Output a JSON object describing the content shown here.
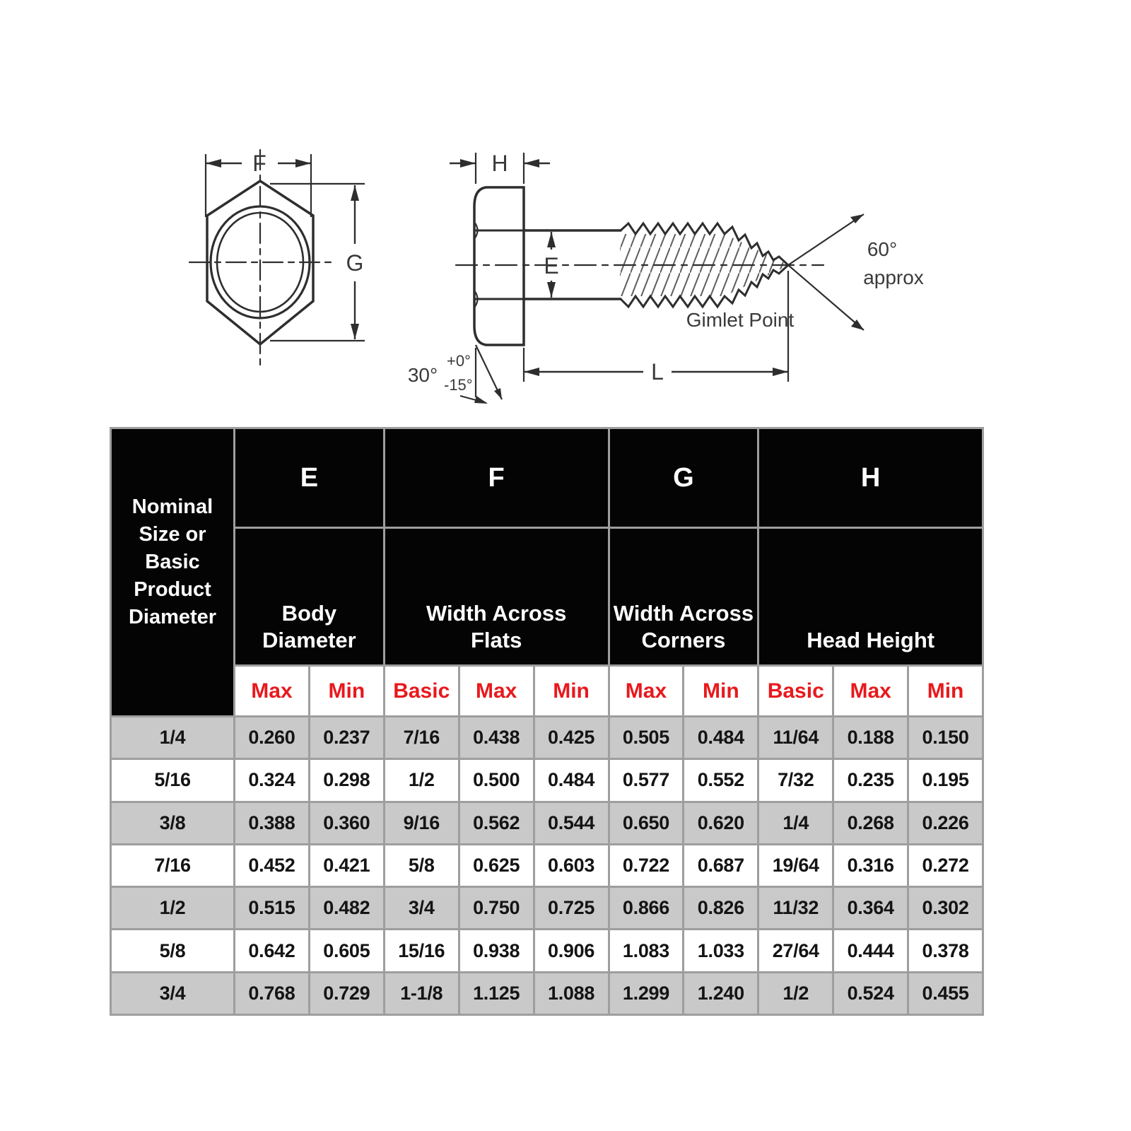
{
  "diagram": {
    "labels": {
      "f": "F",
      "g": "G",
      "h": "H",
      "e": "E",
      "l": "L",
      "angle30": "30°",
      "tol_plus": "+0°",
      "tol_minus": "-15°",
      "angle60": "60°",
      "approx": "approx",
      "gimlet_point": "Gimlet Point"
    },
    "line_color": "#2e2e2e",
    "text_color": "#3a3a3a"
  },
  "table": {
    "corner_label": "Nominal\nSize or\nBasic\nProduct\nDiameter",
    "col_groups": [
      {
        "letter": "E",
        "label": "Body\nDiameter",
        "subs": [
          "Max",
          "Min"
        ]
      },
      {
        "letter": "F",
        "label": "Width Across\nFlats",
        "subs": [
          "Basic",
          "Max",
          "Min"
        ]
      },
      {
        "letter": "G",
        "label": "Width Across\nCorners",
        "subs": [
          "Max",
          "Min"
        ]
      },
      {
        "letter": "H",
        "label": "Head Height",
        "subs": [
          "Basic",
          "Max",
          "Min"
        ]
      }
    ],
    "rows": [
      [
        "1/4",
        "0.260",
        "0.237",
        "7/16",
        "0.438",
        "0.425",
        "0.505",
        "0.484",
        "11/64",
        "0.188",
        "0.150"
      ],
      [
        "5/16",
        "0.324",
        "0.298",
        "1/2",
        "0.500",
        "0.484",
        "0.577",
        "0.552",
        "7/32",
        "0.235",
        "0.195"
      ],
      [
        "3/8",
        "0.388",
        "0.360",
        "9/16",
        "0.562",
        "0.544",
        "0.650",
        "0.620",
        "1/4",
        "0.268",
        "0.226"
      ],
      [
        "7/16",
        "0.452",
        "0.421",
        "5/8",
        "0.625",
        "0.603",
        "0.722",
        "0.687",
        "19/64",
        "0.316",
        "0.272"
      ],
      [
        "1/2",
        "0.515",
        "0.482",
        "3/4",
        "0.750",
        "0.725",
        "0.866",
        "0.826",
        "11/32",
        "0.364",
        "0.302"
      ],
      [
        "5/8",
        "0.642",
        "0.605",
        "15/16",
        "0.938",
        "0.906",
        "1.083",
        "1.033",
        "27/64",
        "0.444",
        "0.378"
      ],
      [
        "3/4",
        "0.768",
        "0.729",
        "1-1/8",
        "1.125",
        "1.088",
        "1.299",
        "1.240",
        "1/2",
        "0.524",
        "0.455"
      ]
    ],
    "colors": {
      "header_bg": "#040404",
      "header_text": "#ffffff",
      "sub_text": "#e8191d",
      "row_alt": "#c9c9c9",
      "grid": "#9e9e9e"
    }
  }
}
